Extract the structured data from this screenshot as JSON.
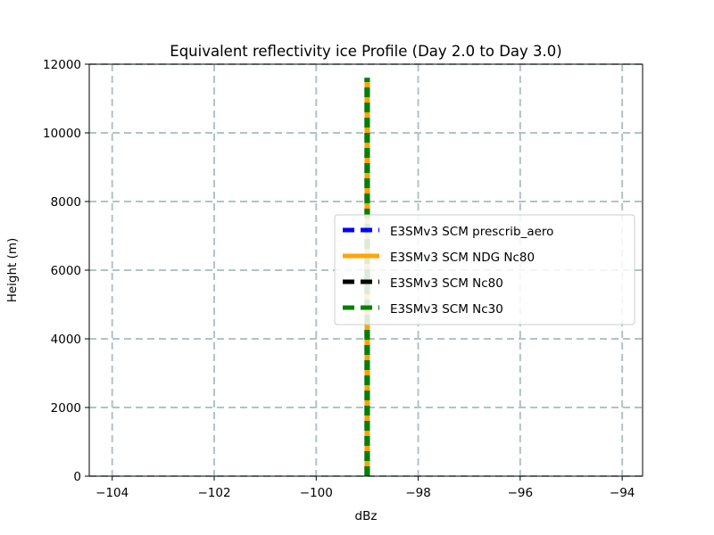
{
  "chart_data": {
    "type": "line",
    "title": "Equivalent reflectivity ice Profile (Day 2.0 to Day 3.0)",
    "xlabel": "dBz",
    "ylabel": "Height (m)",
    "xlim": [
      -104.45,
      -93.6
    ],
    "ylim": [
      0,
      12000
    ],
    "xticks": [
      -104,
      -102,
      -100,
      -98,
      -96,
      -94
    ],
    "xtick_labels": [
      "−104",
      "−102",
      "−100",
      "−98",
      "−96",
      "−94"
    ],
    "yticks": [
      0,
      2000,
      4000,
      6000,
      8000,
      10000,
      12000
    ],
    "ytick_labels": [
      "0",
      "2000",
      "4000",
      "6000",
      "8000",
      "10000",
      "12000"
    ],
    "grid": true,
    "legend_position": "center-right",
    "series": [
      {
        "name": "E3SMv3 SCM prescrib_aero",
        "color": "#0000ff",
        "style": "dashed",
        "x": [
          -99,
          -99
        ],
        "y": [
          0,
          11600
        ]
      },
      {
        "name": "E3SMv3 SCM NDG Nc80",
        "color": "#ffa500",
        "style": "solid",
        "x": [
          -99,
          -99
        ],
        "y": [
          0,
          11600
        ]
      },
      {
        "name": "E3SMv3 SCM Nc80",
        "color": "#000000",
        "style": "dashed",
        "x": [
          -99,
          -99
        ],
        "y": [
          0,
          11600
        ]
      },
      {
        "name": "E3SMv3 SCM Nc30",
        "color": "#008000",
        "style": "dashed",
        "x": [
          -99,
          -99
        ],
        "y": [
          0,
          11600
        ]
      }
    ]
  }
}
